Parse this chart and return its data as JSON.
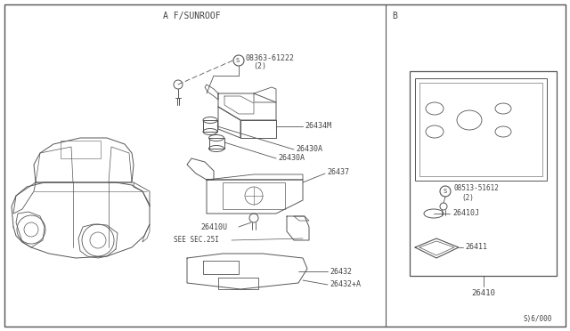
{
  "bg_color": "#ffffff",
  "line_color": "#555555",
  "text_color": "#444444",
  "figsize": [
    6.4,
    3.72
  ],
  "dpi": 100,
  "section_a_label": "A F/SUNROOF",
  "section_b_label": "B",
  "part_ref": "S)6/000",
  "screw_a_label": "08363-61222",
  "screw_a_sub": "(2)",
  "screw_b_label": "08513-51612",
  "screw_b_sub": "(2)",
  "label_26434M": "26434M",
  "label_26430A_1": "26430A",
  "label_26430A_2": "26430A",
  "label_26437": "26437",
  "label_26410U": "26410U",
  "label_see_sec": "SEE SEC.25I",
  "label_26432": "26432",
  "label_26432A": "26432+A",
  "label_26410J": "26410J",
  "label_26411": "26411",
  "label_26410": "26410"
}
